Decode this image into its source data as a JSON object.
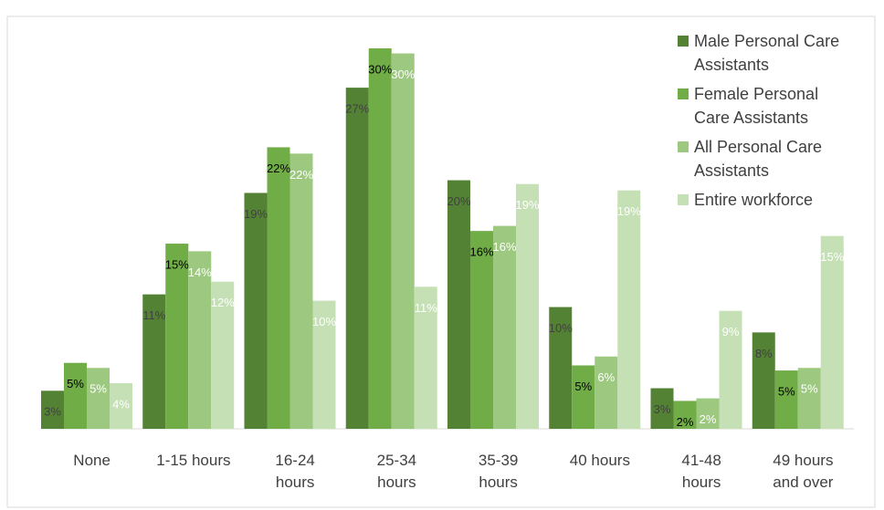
{
  "chart_data": {
    "type": "bar",
    "categories": [
      "None",
      "1-15 hours",
      "16-24\nhours",
      "25-34\nhours",
      "35-39\nhours",
      "40 hours",
      "41-48\nhours",
      "49 hours\nand over"
    ],
    "series": [
      {
        "name": "Male Personal Care\nAssistants",
        "color": "#548235",
        "label_color": "#404040",
        "values": [
          3.0,
          10.6,
          18.6,
          26.9,
          19.6,
          9.6,
          3.2,
          7.6
        ],
        "value_labels": [
          "3%",
          "11%",
          "19%",
          "27%",
          "20%",
          "10%",
          "3%",
          "8%"
        ]
      },
      {
        "name": "Female Personal\nCare Assistants",
        "color": "#70ad47",
        "label_color": "#000000",
        "values": [
          5.2,
          14.6,
          22.2,
          30.0,
          15.6,
          5.0,
          2.2,
          4.6
        ],
        "value_labels": [
          "5%",
          "15%",
          "22%",
          "30%",
          "16%",
          "5%",
          "2%",
          "5%"
        ]
      },
      {
        "name": "All Personal Care\nAssistants",
        "color": "#9dc87f",
        "label_color": "#ffffff",
        "values": [
          4.8,
          14.0,
          21.7,
          29.6,
          16.0,
          5.7,
          2.4,
          4.8
        ],
        "value_labels": [
          "5%",
          "14%",
          "22%",
          "30%",
          "16%",
          "6%",
          "2%",
          "5%"
        ]
      },
      {
        "name": "Entire workforce",
        "color": "#c5e0b4",
        "label_color": "#ffffff",
        "values": [
          3.6,
          11.6,
          10.1,
          11.2,
          19.3,
          18.8,
          9.3,
          15.2
        ],
        "value_labels": [
          "4%",
          "12%",
          "10%",
          "11%",
          "19%",
          "19%",
          "9%",
          "15%"
        ]
      }
    ]
  }
}
